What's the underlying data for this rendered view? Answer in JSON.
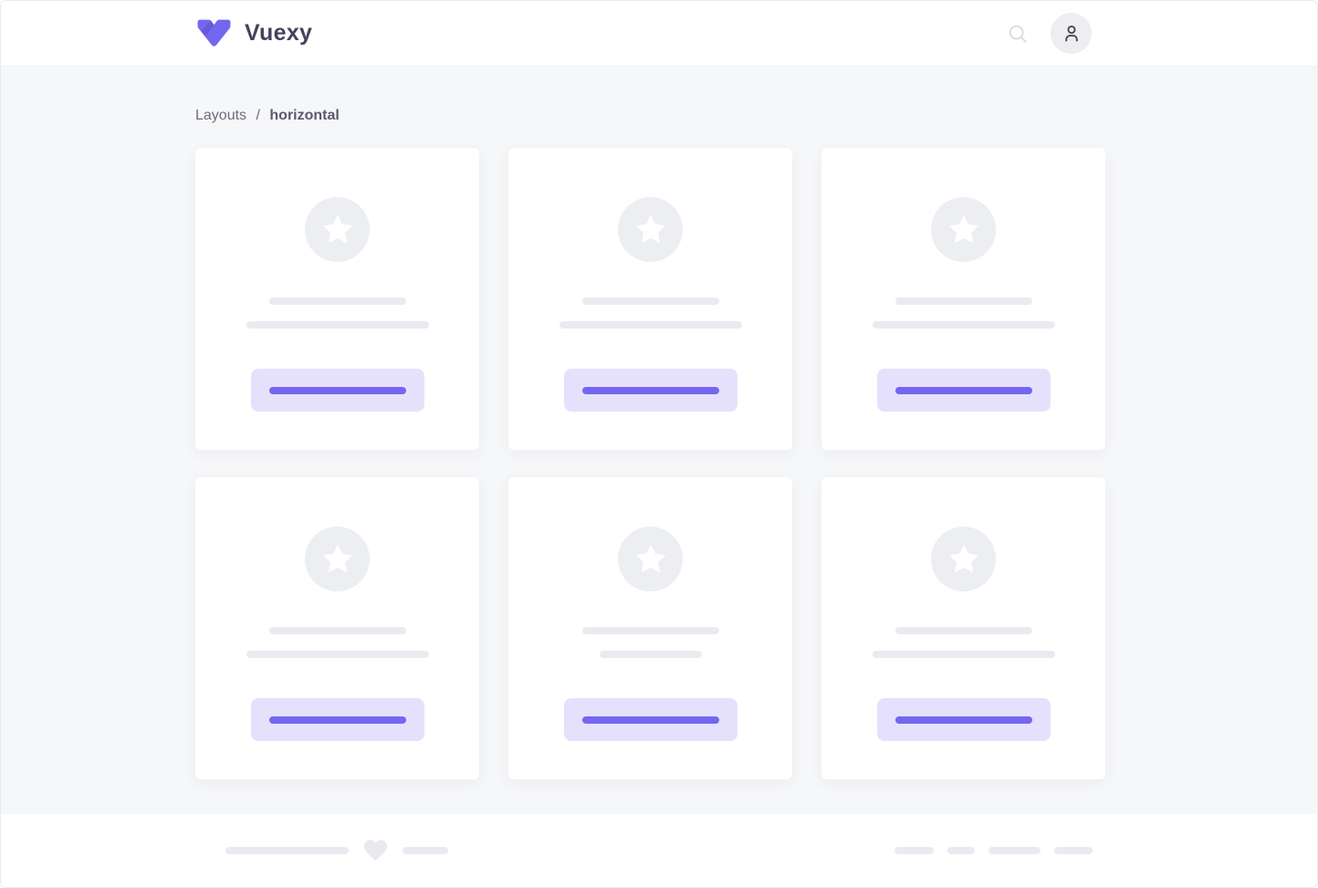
{
  "navbar": {
    "brand": "Vuexy",
    "icons": [
      "vuexy-logo-icon",
      "search-icon",
      "user-icon"
    ]
  },
  "breadcrumb": {
    "parent": "Layouts",
    "separator": "/",
    "current": "horizontal"
  },
  "main": {
    "cards": [
      {
        "icon": "star",
        "line1_width": 150,
        "line2_width": 200,
        "button_line_width": 150
      },
      {
        "icon": "star",
        "line1_width": 150,
        "line2_width": 200,
        "button_line_width": 150
      },
      {
        "icon": "star",
        "line1_width": 150,
        "line2_width": 200,
        "button_line_width": 150
      },
      {
        "icon": "star",
        "line1_width": 150,
        "line2_width": 200,
        "button_line_width": 150
      },
      {
        "icon": "star",
        "line1_width": 150,
        "line2_width": 112,
        "button_line_width": 150
      },
      {
        "icon": "star",
        "line1_width": 150,
        "line2_width": 200,
        "button_line_width": 150
      }
    ]
  },
  "footer": {
    "heart_icon": "heart",
    "left_pill_widths": [
      135,
      50
    ],
    "right_pill_widths": [
      43,
      30,
      57,
      42
    ]
  },
  "colors": {
    "primary": "#7367f0",
    "primary_light": "#e5e1fc",
    "body_bg": "#f6f7f9",
    "card_bg": "#ffffff",
    "placeholder": "#e9ebf0",
    "placeholder_circle": "#eceef2",
    "heart": "#e8eaee",
    "brand_text": "#45415e",
    "breadcrumb_muted": "#6f6b7d",
    "breadcrumb_current": "#5d596c",
    "search_icon": "#d7dae0",
    "avatar_bg": "#edeef0",
    "avatar_icon": "#4b465c",
    "navbar_border": "#f2f2f5",
    "frame_border": "#e9eaef",
    "logo_purple": "#7367f0"
  }
}
